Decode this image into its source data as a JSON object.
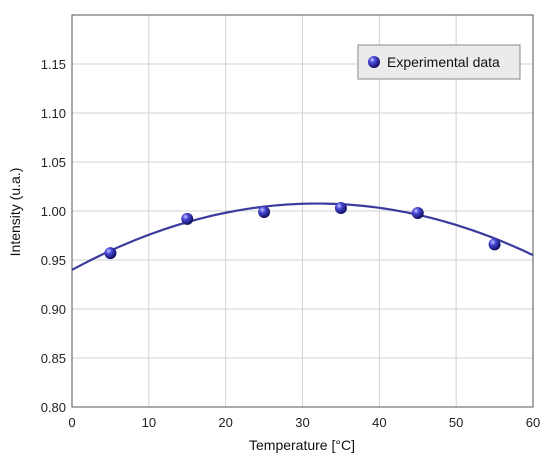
{
  "chart_data": {
    "type": "scatter",
    "title": "",
    "xlabel": "Temperature [°C]",
    "ylabel": "Intensity (u.a.)",
    "xlim": [
      0,
      60
    ],
    "ylim": [
      0.8,
      1.2
    ],
    "xticks": [
      "0",
      "10",
      "20",
      "30",
      "40",
      "50",
      "60"
    ],
    "yticks": [
      "0.80",
      "0.85",
      "0.90",
      "0.95",
      "1.00",
      "1.05",
      "1.10",
      "1.15"
    ],
    "grid": true,
    "legend_position": "top-right",
    "series": [
      {
        "name": "Experimental data",
        "kind": "scatter",
        "color": "#2a2aa8",
        "x": [
          5,
          15,
          25,
          35,
          45,
          55
        ],
        "y": [
          0.957,
          0.992,
          0.999,
          1.003,
          0.998,
          0.966
        ]
      },
      {
        "kind": "line",
        "color": "#3b3b9e",
        "fit": "quadratic",
        "coefficients": [
          0.9399,
          0.004247,
          -6.66e-05
        ]
      }
    ]
  }
}
